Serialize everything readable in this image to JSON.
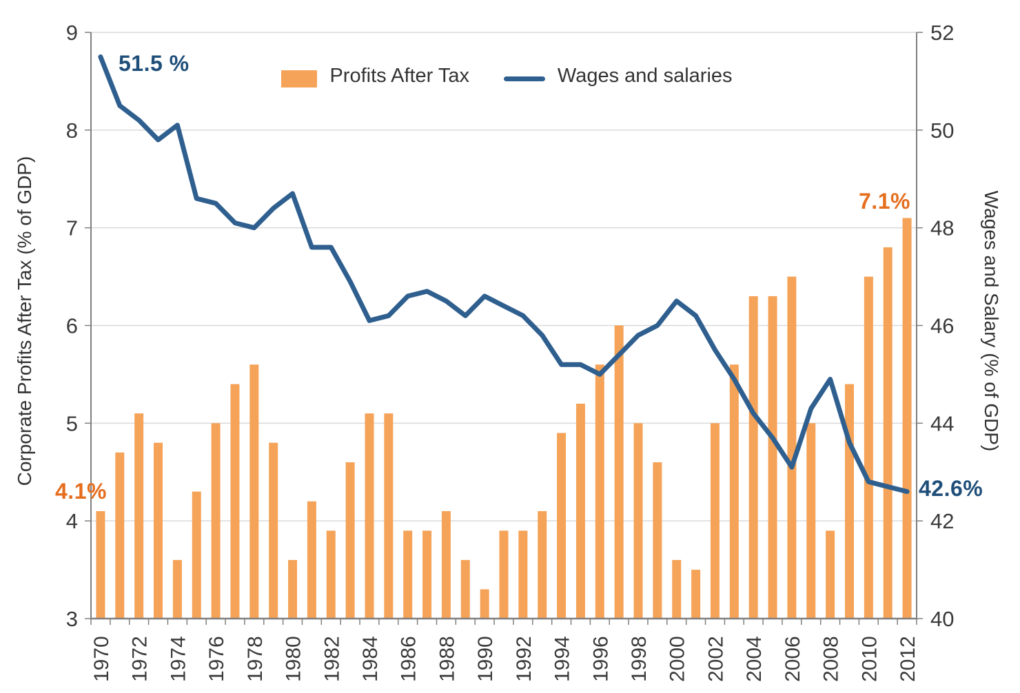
{
  "chart_data": {
    "type": "combo",
    "x": [
      1970,
      1971,
      1972,
      1973,
      1974,
      1975,
      1976,
      1977,
      1978,
      1979,
      1980,
      1981,
      1982,
      1983,
      1984,
      1985,
      1986,
      1987,
      1988,
      1989,
      1990,
      1991,
      1992,
      1993,
      1994,
      1995,
      1996,
      1997,
      1998,
      1999,
      2000,
      2001,
      2002,
      2003,
      2004,
      2005,
      2006,
      2007,
      2008,
      2009,
      2010,
      2011,
      2012
    ],
    "x_tick_labels": [
      "1970",
      "1972",
      "1974",
      "1976",
      "1978",
      "1980",
      "1982",
      "1984",
      "1986",
      "1988",
      "1990",
      "1992",
      "1994",
      "1996",
      "1998",
      "2000",
      "2002",
      "2004",
      "2006",
      "2008",
      "2010",
      "2012"
    ],
    "series": [
      {
        "name": "Profits After Tax",
        "type": "bar",
        "axis": "left",
        "color": "#F5A358",
        "values": [
          4.1,
          4.7,
          5.1,
          4.8,
          3.6,
          4.3,
          5.0,
          5.4,
          5.6,
          4.8,
          3.6,
          4.2,
          3.9,
          4.6,
          5.1,
          5.1,
          3.9,
          3.9,
          4.1,
          3.6,
          3.3,
          3.9,
          3.9,
          4.1,
          4.9,
          5.2,
          5.6,
          6.0,
          5.0,
          4.6,
          3.6,
          3.5,
          5.0,
          5.6,
          6.3,
          6.3,
          6.5,
          5.0,
          3.9,
          5.4,
          6.5,
          6.8,
          7.1
        ]
      },
      {
        "name": "Wages and salaries",
        "type": "line",
        "axis": "right",
        "color": "#2F5F8F",
        "values": [
          51.5,
          50.5,
          50.2,
          49.8,
          50.1,
          48.6,
          48.5,
          48.1,
          48.0,
          48.4,
          48.7,
          47.6,
          47.6,
          46.9,
          46.1,
          46.2,
          46.6,
          46.7,
          46.5,
          46.2,
          46.6,
          46.4,
          46.2,
          45.8,
          45.2,
          45.2,
          45.0,
          45.4,
          45.8,
          46.0,
          46.5,
          46.2,
          45.5,
          44.9,
          44.2,
          43.7,
          43.1,
          44.3,
          44.9,
          43.6,
          42.8,
          42.7,
          42.6
        ]
      }
    ],
    "left_axis": {
      "title": "Corporate Profits After Tax (% of GDP)",
      "min": 3,
      "max": 9,
      "tick_labels": [
        "3",
        "4",
        "5",
        "6",
        "7",
        "8",
        "9"
      ]
    },
    "right_axis": {
      "title": "Wages and Salary (% of GDP)",
      "min": 40,
      "max": 52,
      "tick_labels": [
        "40",
        "42",
        "44",
        "46",
        "48",
        "50",
        "52"
      ]
    },
    "grid": "horizontal",
    "legend": {
      "position": "top",
      "items": [
        {
          "label": "Profits After Tax",
          "marker": "swatch",
          "color": "#F5A358"
        },
        {
          "label": "Wages and salaries",
          "marker": "line",
          "color": "#2F5F8F"
        }
      ]
    },
    "annotations": [
      {
        "id": "line-start-1970",
        "text": "51.5 %",
        "color": "#1F4E79"
      },
      {
        "id": "bar-1970",
        "text": "4.1%",
        "color": "#E56E1E"
      },
      {
        "id": "bar-2012",
        "text": "7.1%",
        "color": "#E56E1E"
      },
      {
        "id": "line-end-2012",
        "text": "42.6%",
        "color": "#1F4E79"
      }
    ],
    "colors": {
      "gridline": "#D9D9D9",
      "axis": "#7F7F7F",
      "tick_text": "#3A3A3A"
    }
  }
}
